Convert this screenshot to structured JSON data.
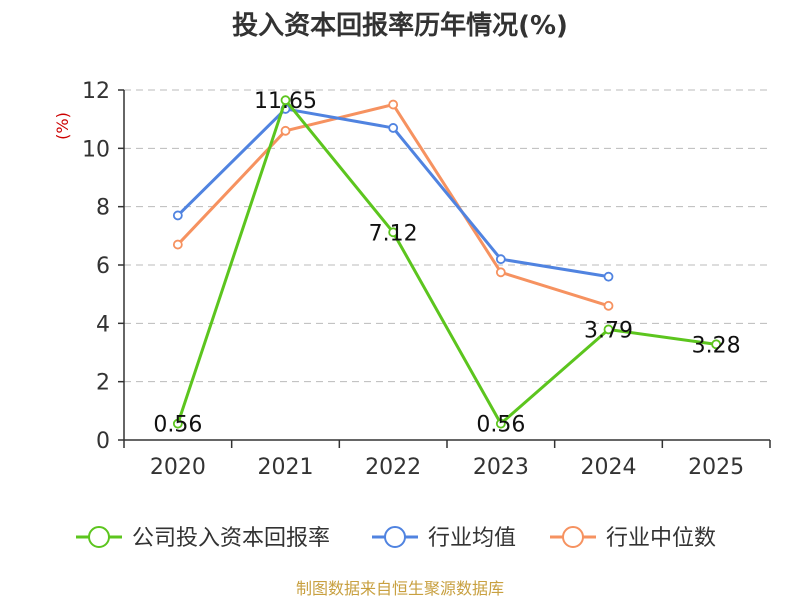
{
  "chart_data": {
    "type": "line",
    "title": "投入资本回报率历年情况(%)",
    "ylabel": "(%)",
    "xlabel": "",
    "categories": [
      "2020",
      "2021",
      "2022",
      "2023",
      "2024",
      "2025"
    ],
    "ylim": [
      0,
      12
    ],
    "yticks": [
      0,
      2,
      4,
      6,
      8,
      10,
      12
    ],
    "grid": true,
    "legend_position": "bottom",
    "series": [
      {
        "name": "公司投入资本回报率",
        "color": "#5cc51e",
        "values": [
          0.56,
          11.65,
          7.12,
          0.56,
          3.79,
          3.28
        ],
        "labels": [
          "0.56",
          "11.65",
          "7.12",
          "0.56",
          "3.79",
          "3.28"
        ]
      },
      {
        "name": "行业均值",
        "color": "#5083e0",
        "values": [
          7.7,
          11.35,
          10.7,
          6.2,
          5.6,
          null
        ]
      },
      {
        "name": "行业中位数",
        "color": "#f69260",
        "values": [
          6.7,
          10.6,
          11.5,
          5.75,
          4.6,
          null
        ]
      }
    ],
    "source": "制图数据来自恒生聚源数据库"
  }
}
